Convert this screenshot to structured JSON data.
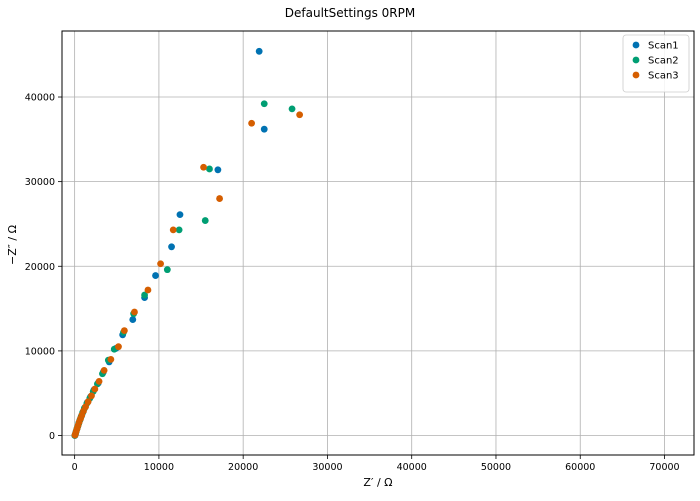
{
  "chart_data": {
    "type": "scatter",
    "title": "DefaultSettings 0RPM",
    "xlabel": "Z′ / Ω",
    "ylabel": "−Z″ / Ω",
    "xlim": [
      -1500,
      73500
    ],
    "ylim": [
      -2300,
      47800
    ],
    "xticks": [
      0,
      10000,
      20000,
      30000,
      40000,
      50000,
      60000,
      70000
    ],
    "yticks": [
      0,
      10000,
      20000,
      30000,
      40000
    ],
    "grid": true,
    "legend_position": "top-right",
    "series": [
      {
        "name": "Scan1",
        "color": "#0072b2",
        "points": [
          [
            21900,
            45400
          ],
          [
            22500,
            36200
          ],
          [
            17000,
            31400
          ],
          [
            12500,
            26100
          ],
          [
            11500,
            22300
          ],
          [
            9600,
            18900
          ],
          [
            8300,
            16300
          ],
          [
            6900,
            13700
          ],
          [
            5700,
            11900
          ],
          [
            4900,
            10300
          ],
          [
            4100,
            8700
          ],
          [
            3400,
            7500
          ],
          [
            2800,
            6200
          ],
          [
            2300,
            5400
          ],
          [
            1900,
            4600
          ],
          [
            1500,
            3900
          ],
          [
            1200,
            3300
          ],
          [
            1000,
            2800
          ],
          [
            800,
            2300
          ],
          [
            650,
            1900
          ],
          [
            500,
            1500
          ],
          [
            380,
            1100
          ],
          [
            280,
            800
          ],
          [
            180,
            500
          ],
          [
            100,
            200
          ],
          [
            30,
            0
          ]
        ]
      },
      {
        "name": "Scan2",
        "color": "#009e73",
        "points": [
          [
            22500,
            39200
          ],
          [
            25800,
            38600
          ],
          [
            16000,
            31500
          ],
          [
            15500,
            25400
          ],
          [
            12400,
            24300
          ],
          [
            11000,
            19600
          ],
          [
            8300,
            16600
          ],
          [
            7000,
            14400
          ],
          [
            5800,
            12200
          ],
          [
            4700,
            10200
          ],
          [
            4000,
            8900
          ],
          [
            3300,
            7300
          ],
          [
            2700,
            6100
          ],
          [
            2200,
            5200
          ],
          [
            1800,
            4400
          ],
          [
            1450,
            3800
          ],
          [
            1150,
            3200
          ],
          [
            950,
            2700
          ],
          [
            760,
            2200
          ],
          [
            620,
            1800
          ],
          [
            480,
            1400
          ],
          [
            360,
            1050
          ],
          [
            260,
            750
          ],
          [
            170,
            450
          ],
          [
            90,
            180
          ],
          [
            20,
            0
          ]
        ]
      },
      {
        "name": "Scan3",
        "color": "#d55e00",
        "points": [
          [
            21000,
            36900
          ],
          [
            26700,
            37900
          ],
          [
            15300,
            31700
          ],
          [
            17200,
            28000
          ],
          [
            11700,
            24300
          ],
          [
            10200,
            20300
          ],
          [
            8700,
            17200
          ],
          [
            7100,
            14600
          ],
          [
            5900,
            12400
          ],
          [
            5200,
            10500
          ],
          [
            4300,
            9000
          ],
          [
            3500,
            7700
          ],
          [
            2900,
            6400
          ],
          [
            2400,
            5500
          ],
          [
            2000,
            4700
          ],
          [
            1600,
            4000
          ],
          [
            1300,
            3400
          ],
          [
            1050,
            2900
          ],
          [
            850,
            2400
          ],
          [
            700,
            2000
          ],
          [
            540,
            1600
          ],
          [
            410,
            1200
          ],
          [
            300,
            850
          ],
          [
            200,
            550
          ],
          [
            110,
            250
          ],
          [
            40,
            50
          ]
        ]
      }
    ]
  }
}
